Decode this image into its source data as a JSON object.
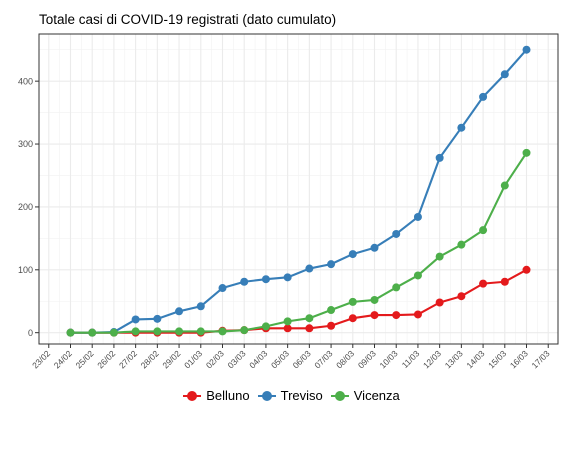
{
  "chart_data": {
    "type": "line",
    "title": "Totale casi di COVID-19 registrati (dato cumulato)",
    "xlabel": "",
    "ylabel": "",
    "x_ticks": [
      "23/02",
      "24/02",
      "25/02",
      "26/02",
      "27/02",
      "28/02",
      "29/02",
      "01/03",
      "02/03",
      "03/03",
      "04/03",
      "05/03",
      "06/03",
      "07/03",
      "08/03",
      "09/03",
      "10/03",
      "11/03",
      "12/03",
      "13/03",
      "14/03",
      "15/03",
      "16/03",
      "17/03"
    ],
    "x": [
      "24/02",
      "25/02",
      "26/02",
      "27/02",
      "28/02",
      "29/02",
      "01/03",
      "02/03",
      "03/03",
      "04/03",
      "05/03",
      "06/03",
      "07/03",
      "08/03",
      "09/03",
      "10/03",
      "11/03",
      "12/03",
      "13/03",
      "14/03",
      "15/03",
      "16/03"
    ],
    "y_ticks": [
      0,
      100,
      200,
      300,
      400
    ],
    "ylim": [
      -18,
      475
    ],
    "grid": true,
    "legend_position": "bottom",
    "series": [
      {
        "name": "Belluno",
        "color": "#e41a1c",
        "values": [
          0,
          0,
          0,
          0,
          0,
          0,
          0,
          3,
          4,
          7,
          7,
          7,
          11,
          23,
          28,
          28,
          29,
          48,
          58,
          78,
          81,
          100
        ]
      },
      {
        "name": "Treviso",
        "color": "#377eb8",
        "values": [
          0,
          0,
          1,
          21,
          22,
          34,
          42,
          71,
          81,
          85,
          88,
          102,
          109,
          125,
          135,
          157,
          184,
          278,
          326,
          375,
          411,
          450
        ]
      },
      {
        "name": "Vicenza",
        "color": "#4daf4a",
        "values": [
          0,
          0,
          0,
          2,
          2,
          2,
          2,
          2,
          4,
          10,
          18,
          23,
          36,
          49,
          52,
          72,
          91,
          121,
          140,
          163,
          234,
          286
        ]
      }
    ]
  }
}
